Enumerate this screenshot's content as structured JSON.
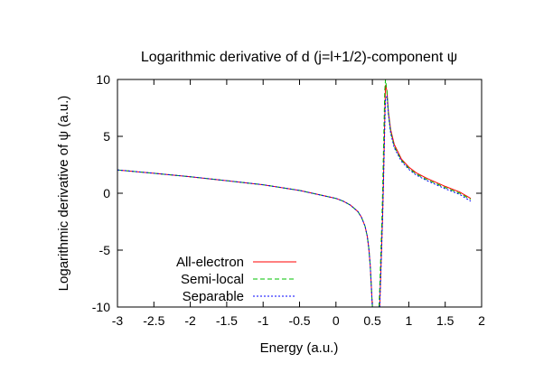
{
  "chart_data": {
    "type": "line",
    "title": "Logarithmic derivative of d (j=l+1/2)-component ψ",
    "xlabel": "Energy (a.u.)",
    "ylabel": "Logarithmic derivative of ψ (a.u.)",
    "xlim": [
      -3,
      2
    ],
    "ylim": [
      -10,
      10
    ],
    "x_ticks": [
      "-3",
      "-2.5",
      "-2",
      "-1.5",
      "-1",
      "-0.5",
      "0",
      "0.5",
      "1",
      "1.5",
      "2"
    ],
    "y_ticks": [
      "-10",
      "-5",
      "0",
      "5",
      "10"
    ],
    "grid": false,
    "legend_position": "bottom-left",
    "series": [
      {
        "name": "All-electron",
        "color": "#ff0000",
        "dash": "solid",
        "segments": [
          {
            "x": [
              -3.0,
              -2.5,
              -2.0,
              -1.5,
              -1.0,
              -0.5,
              -0.25,
              0.0,
              0.1,
              0.2,
              0.3,
              0.35,
              0.4,
              0.43,
              0.45,
              0.47,
              0.48,
              0.5
            ],
            "y": [
              2.05,
              1.75,
              1.45,
              1.1,
              0.75,
              0.25,
              -0.1,
              -0.45,
              -0.7,
              -1.05,
              -1.6,
              -2.1,
              -2.9,
              -3.8,
              -4.8,
              -6.3,
              -7.5,
              -10
            ]
          },
          {
            "x": [
              0.6,
              0.61,
              0.62,
              0.63,
              0.64,
              0.65,
              0.66,
              0.67,
              0.68,
              0.7,
              0.72,
              0.75,
              0.8,
              0.9,
              1.0,
              1.1,
              1.25,
              1.5,
              1.7,
              1.85
            ],
            "y": [
              -10,
              -8.0,
              -6.0,
              -4.0,
              -2.0,
              0.5,
              3.5,
              6.5,
              9.5,
              9.0,
              7.2,
              5.6,
              4.3,
              3.0,
              2.3,
              1.8,
              1.3,
              0.6,
              0.1,
              -0.45
            ]
          }
        ]
      },
      {
        "name": "Semi-local",
        "color": "#00c000",
        "dash": "dashed",
        "segments": [
          {
            "x": [
              -3.0,
              -2.5,
              -2.0,
              -1.5,
              -1.0,
              -0.5,
              -0.25,
              0.0,
              0.1,
              0.2,
              0.3,
              0.35,
              0.4,
              0.43,
              0.45,
              0.47,
              0.48,
              0.5
            ],
            "y": [
              2.05,
              1.75,
              1.45,
              1.1,
              0.75,
              0.25,
              -0.1,
              -0.45,
              -0.7,
              -1.05,
              -1.6,
              -2.1,
              -2.9,
              -3.8,
              -4.8,
              -6.3,
              -7.5,
              -10
            ]
          },
          {
            "x": [
              0.59,
              0.6,
              0.61,
              0.62,
              0.63,
              0.64,
              0.65,
              0.66,
              0.67,
              0.68,
              0.7,
              0.72,
              0.75,
              0.8,
              0.9,
              1.0,
              1.1,
              1.25,
              1.5,
              1.7,
              1.85
            ],
            "y": [
              -10,
              -8.5,
              -6.5,
              -4.5,
              -2.5,
              0.0,
              3.0,
              6.0,
              9.0,
              10.0,
              9.0,
              7.0,
              5.4,
              4.1,
              2.9,
              2.2,
              1.7,
              1.2,
              0.5,
              0.0,
              -0.55
            ]
          }
        ]
      },
      {
        "name": "Separable",
        "color": "#0000ff",
        "dash": "dotted",
        "segments": [
          {
            "x": [
              -3.0,
              -2.5,
              -2.0,
              -1.5,
              -1.0,
              -0.5,
              -0.25,
              0.0,
              0.1,
              0.2,
              0.3,
              0.35,
              0.4,
              0.43,
              0.45,
              0.47,
              0.48,
              0.5
            ],
            "y": [
              2.05,
              1.75,
              1.45,
              1.1,
              0.75,
              0.25,
              -0.1,
              -0.45,
              -0.7,
              -1.05,
              -1.6,
              -2.1,
              -2.9,
              -3.8,
              -4.8,
              -6.3,
              -7.5,
              -10
            ]
          },
          {
            "x": [
              0.6,
              0.61,
              0.62,
              0.63,
              0.64,
              0.65,
              0.66,
              0.67,
              0.68,
              0.7,
              0.72,
              0.75,
              0.8,
              0.9,
              1.0,
              1.1,
              1.25,
              1.5,
              1.7,
              1.85
            ],
            "y": [
              -10,
              -8.2,
              -6.2,
              -4.2,
              -2.2,
              0.3,
              3.0,
              5.8,
              8.3,
              8.5,
              7.0,
              5.3,
              4.0,
              2.8,
              2.1,
              1.6,
              1.1,
              0.4,
              -0.1,
              -0.7
            ]
          }
        ]
      }
    ]
  }
}
